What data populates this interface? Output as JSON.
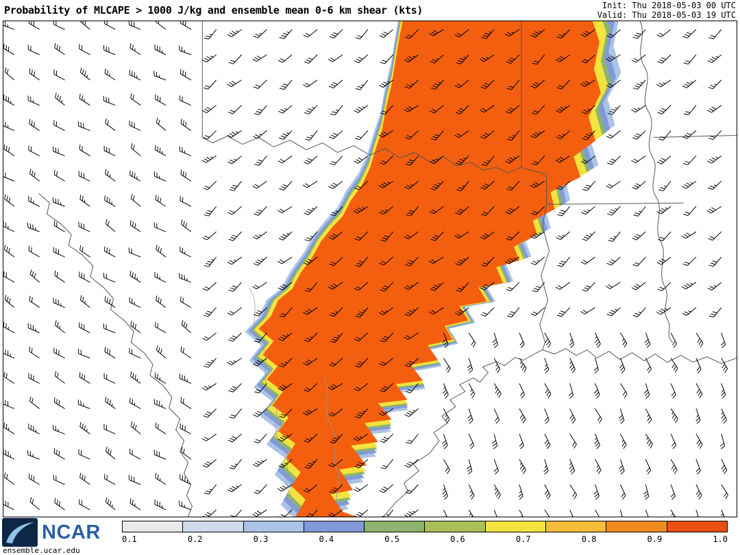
{
  "header": {
    "title": "Probability of MLCAPE > 1000 J/kg and ensemble mean 0-6 km shear (kts)",
    "init": "Init: Thu 2018-05-03 00 UTC",
    "valid": "Valid: Thu 2018-05-03 19 UTC"
  },
  "footer": {
    "logo_text": "NCAR",
    "site": "ensemble.ucar.edu"
  },
  "colorbar": {
    "ticks": [
      "0.1",
      "0.2",
      "0.3",
      "0.4",
      "0.5",
      "0.6",
      "0.7",
      "0.8",
      "0.9",
      "1.0"
    ],
    "colors": [
      "#e9e9e9",
      "#cfdcec",
      "#abc4e6",
      "#8299d9",
      "#8cb56b",
      "#aabf55",
      "#f2e33e",
      "#f5bd38",
      "#f28b1f",
      "#e94f12"
    ]
  },
  "map": {
    "background": "#ffffff",
    "border_color": "#000000",
    "state_line_color": "#555555",
    "river_line_color": "#999999",
    "barb_color": "#000000",
    "core_color": "#f35f0f"
  },
  "chart_data": {
    "type": "heatmap",
    "title": "Probability of MLCAPE > 1000 J/kg and ensemble mean 0-6 km shear (kts)",
    "init_time": "Thu 2018-05-03 00 UTC",
    "valid_time": "Thu 2018-05-03 19 UTC",
    "variable": "Probability of MLCAPE > 1000 J/kg",
    "overlay": "ensemble mean 0-6 km shear wind barbs (kts)",
    "colorbar_ticks": [
      0.1,
      0.2,
      0.3,
      0.4,
      0.5,
      0.6,
      0.7,
      0.8,
      0.9,
      1.0
    ],
    "colorbar_colors": [
      "#e9e9e9",
      "#cfdcec",
      "#abc4e6",
      "#8299d9",
      "#8cb56b",
      "#aabf55",
      "#f2e33e",
      "#f5bd38",
      "#f28b1f",
      "#e94f12"
    ],
    "legend_position": "bottom"
  }
}
